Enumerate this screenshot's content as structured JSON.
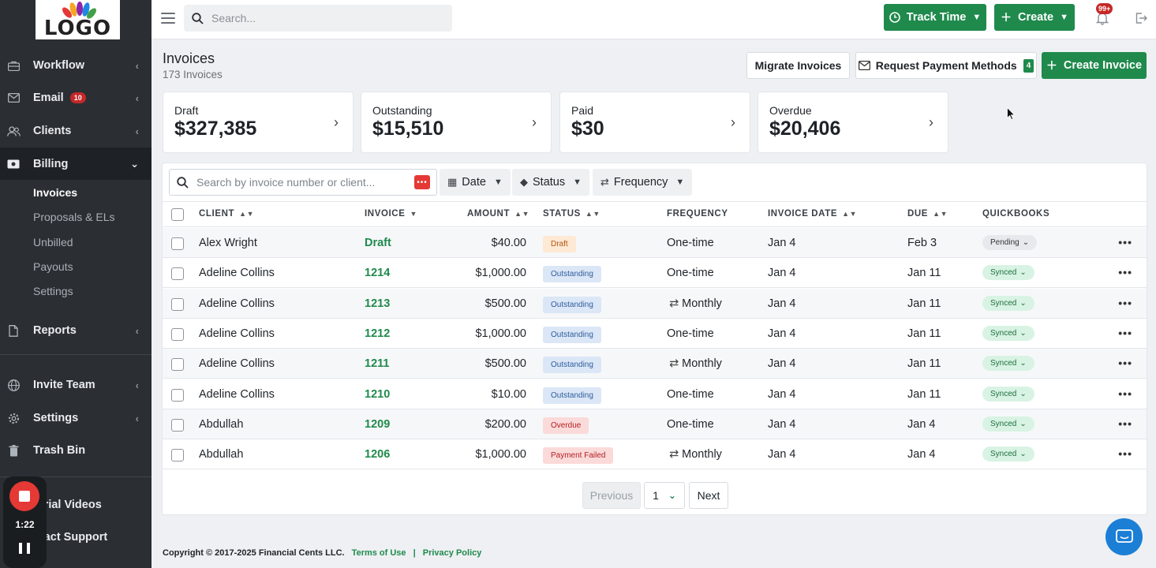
{
  "brand": {
    "logo_text": "LOGO"
  },
  "sidebar": {
    "items": [
      {
        "label": "Workflow",
        "icon": "briefcase-icon"
      },
      {
        "label": "Email",
        "icon": "envelope-icon",
        "badge": "10"
      },
      {
        "label": "Clients",
        "icon": "users-icon"
      },
      {
        "label": "Billing",
        "icon": "money-icon"
      },
      {
        "label": "Reports",
        "icon": "file-icon"
      },
      {
        "label": "Invite Team",
        "icon": "globe-icon"
      },
      {
        "label": "Settings",
        "icon": "gear-icon"
      },
      {
        "label": "Trash Bin",
        "icon": "trash-icon"
      },
      {
        "label": "torial Videos",
        "icon": "video-icon"
      },
      {
        "label": "ntact Support",
        "icon": "support-icon"
      }
    ],
    "billing_sub": [
      "Invoices",
      "Proposals & ELs",
      "Unbilled",
      "Payouts",
      "Settings"
    ]
  },
  "recorder": {
    "time": "1:22"
  },
  "topbar": {
    "search_placeholder": "Search...",
    "track_time": "Track Time",
    "create": "Create",
    "notif_badge": "99+"
  },
  "page": {
    "title": "Invoices",
    "subtitle": "173 Invoices",
    "migrate_btn": "Migrate Invoices",
    "request_btn": "Request Payment Methods",
    "request_count": "4",
    "create_btn": "Create Invoice"
  },
  "summary": [
    {
      "label": "Draft",
      "value": "$327,385"
    },
    {
      "label": "Outstanding",
      "value": "$15,510"
    },
    {
      "label": "Paid",
      "value": "$30"
    },
    {
      "label": "Overdue",
      "value": "$20,406"
    }
  ],
  "filters": {
    "search_placeholder": "Search by invoice number or client...",
    "date": "Date",
    "status": "Status",
    "frequency": "Frequency"
  },
  "table": {
    "headers": [
      "CLIENT",
      "INVOICE",
      "AMOUNT",
      "STATUS",
      "FREQUENCY",
      "INVOICE DATE",
      "DUE",
      "QUICKBOOKS"
    ],
    "rows": [
      {
        "client": "Alex Wright",
        "invoice": "Draft",
        "amount": "$40.00",
        "status": "Draft",
        "frequency": "One-time",
        "date": "Jan 4",
        "due": "Feb 3",
        "qb": "Pending"
      },
      {
        "client": "Adeline Collins",
        "invoice": "1214",
        "amount": "$1,000.00",
        "status": "Outstanding",
        "frequency": "One-time",
        "date": "Jan 4",
        "due": "Jan 11",
        "qb": "Synced"
      },
      {
        "client": "Adeline Collins",
        "invoice": "1213",
        "amount": "$500.00",
        "status": "Outstanding",
        "frequency": "Monthly",
        "date": "Jan 4",
        "due": "Jan 11",
        "qb": "Synced"
      },
      {
        "client": "Adeline Collins",
        "invoice": "1212",
        "amount": "$1,000.00",
        "status": "Outstanding",
        "frequency": "One-time",
        "date": "Jan 4",
        "due": "Jan 11",
        "qb": "Synced"
      },
      {
        "client": "Adeline Collins",
        "invoice": "1211",
        "amount": "$500.00",
        "status": "Outstanding",
        "frequency": "Monthly",
        "date": "Jan 4",
        "due": "Jan 11",
        "qb": "Synced"
      },
      {
        "client": "Adeline Collins",
        "invoice": "1210",
        "amount": "$10.00",
        "status": "Outstanding",
        "frequency": "One-time",
        "date": "Jan 4",
        "due": "Jan 11",
        "qb": "Synced"
      },
      {
        "client": "Abdullah",
        "invoice": "1209",
        "amount": "$200.00",
        "status": "Overdue",
        "frequency": "One-time",
        "date": "Jan 4",
        "due": "Jan 4",
        "qb": "Synced"
      },
      {
        "client": "Abdullah",
        "invoice": "1206",
        "amount": "$1,000.00",
        "status": "Payment Failed",
        "frequency": "Monthly",
        "date": "Jan 4",
        "due": "Jan 4",
        "qb": "Synced"
      }
    ]
  },
  "pagination": {
    "previous": "Previous",
    "page": "1",
    "next": "Next"
  },
  "footer": {
    "copyright": "Copyright © 2017-2025 Financial Cents LLC.",
    "terms": "Terms of Use",
    "separator": "|",
    "privacy": "Privacy Policy"
  },
  "colors": {
    "accent": "#1f8a4c",
    "sidebar": "#2b2f34",
    "alert": "#c62828"
  }
}
